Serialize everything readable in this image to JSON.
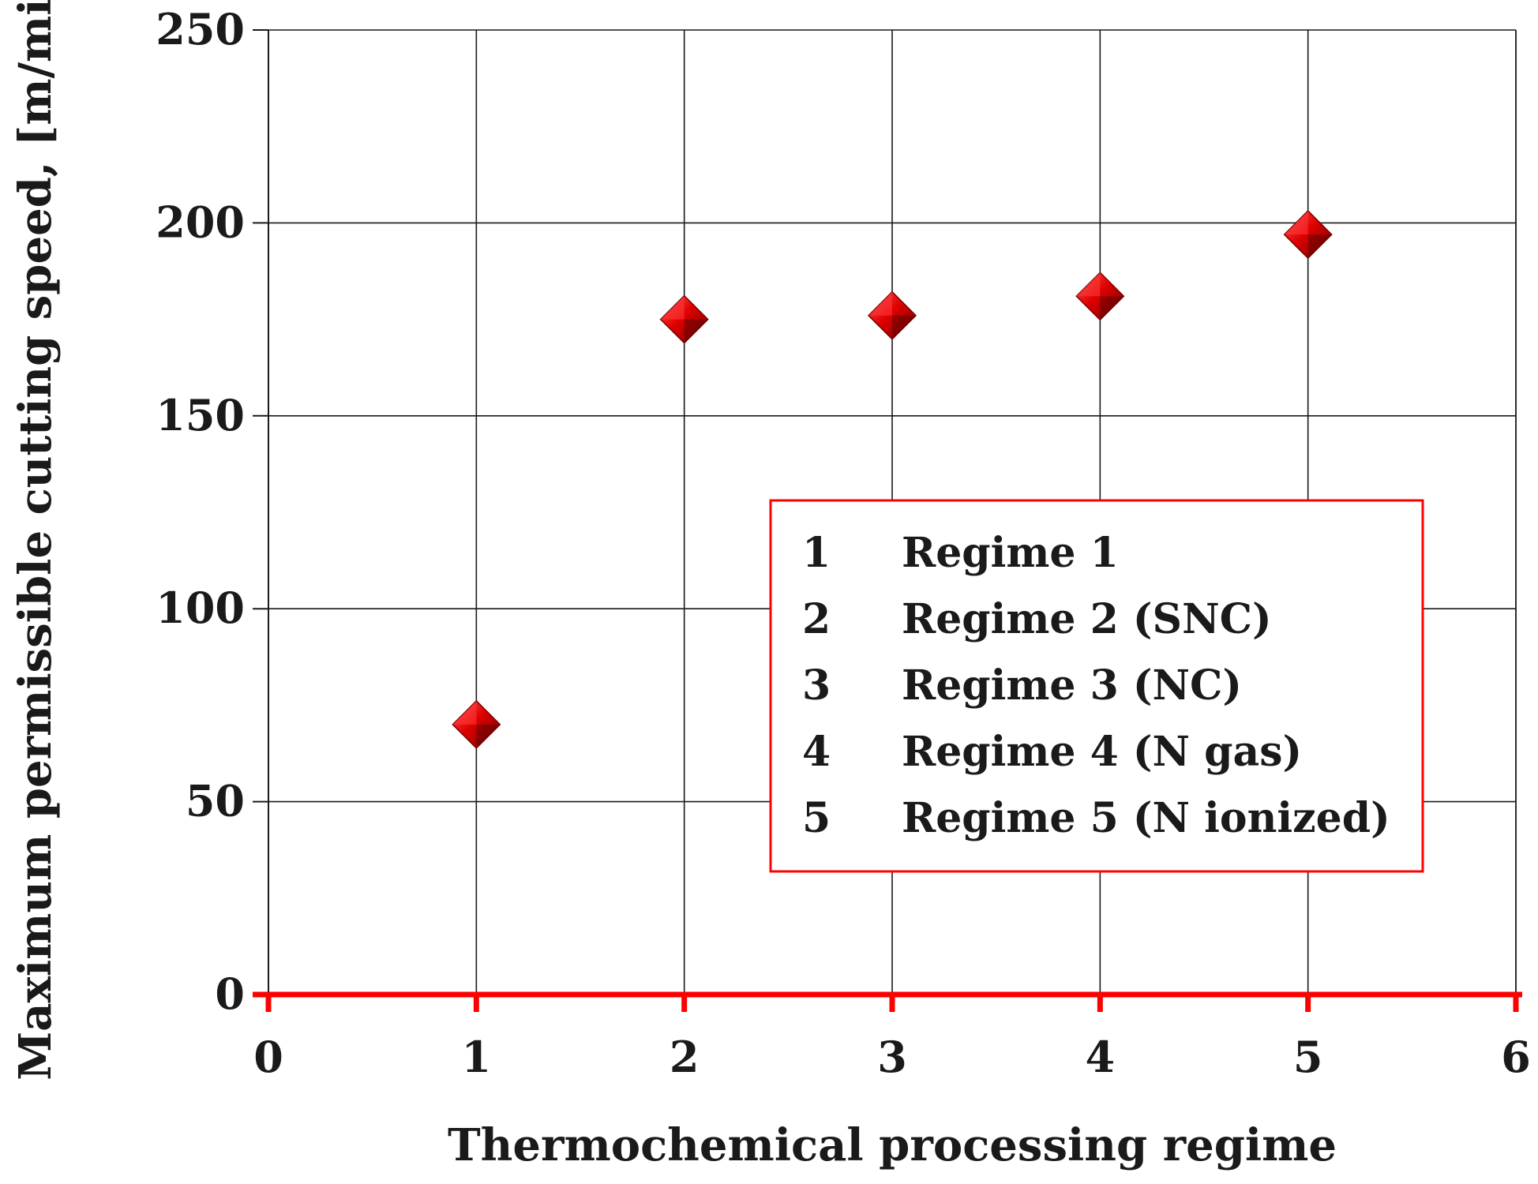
{
  "chart_data": {
    "type": "scatter",
    "title": "",
    "xlabel": "Thermochemical processing regime",
    "ylabel": "Maximum permissible cutting speed, [m/min]",
    "xlim": [
      0,
      6
    ],
    "ylim": [
      0,
      250
    ],
    "x_ticks": [
      "0",
      "1",
      "2",
      "3",
      "4",
      "5",
      "6"
    ],
    "y_ticks": [
      "0",
      "50",
      "100",
      "150",
      "200",
      "250"
    ],
    "grid": true,
    "series": [
      {
        "x": [
          1,
          2,
          3,
          4,
          5
        ],
        "y": [
          70,
          175,
          176,
          181,
          197
        ],
        "marker": "diamond",
        "color": "#d40000"
      }
    ],
    "legend": {
      "placement": "center-right",
      "border_color": "#ff0000",
      "entries": [
        {
          "num": "1",
          "text": "Regime 1"
        },
        {
          "num": "2",
          "text": "Regime 2 (SNC)"
        },
        {
          "num": "3",
          "text": "Regime 3 (NC)"
        },
        {
          "num": "4",
          "text": "Regime 4 (N gas)"
        },
        {
          "num": "5",
          "text": "Regime 5 (N ionized)"
        }
      ]
    },
    "x_axis_color": "#ff0000"
  }
}
